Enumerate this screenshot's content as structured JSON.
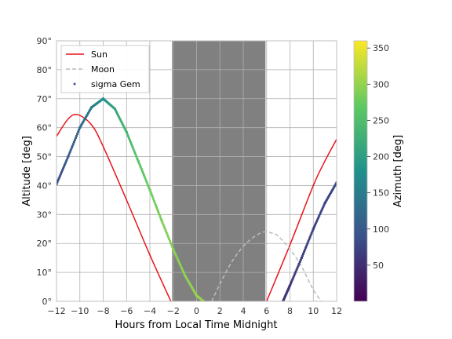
{
  "chart_data": {
    "type": "line",
    "xlabel": "Hours from Local Time Midnight",
    "ylabel": "Altitude [deg]",
    "xlim": [
      -12,
      12
    ],
    "ylim": [
      0,
      90
    ],
    "xticks": [
      -12,
      -10,
      -8,
      -6,
      -4,
      -2,
      0,
      2,
      4,
      6,
      8,
      10,
      12
    ],
    "xtick_labels": [
      "−12",
      "−10",
      "−8",
      "−6",
      "−4",
      "−2",
      "0",
      "2",
      "4",
      "6",
      "8",
      "10",
      "12"
    ],
    "yticks": [
      0,
      10,
      20,
      30,
      40,
      50,
      60,
      70,
      80,
      90
    ],
    "ytick_labels": [
      "0°",
      "10°",
      "20°",
      "30°",
      "40°",
      "50°",
      "60°",
      "70°",
      "80°",
      "90°"
    ],
    "grid": true,
    "legend_position": "top-left",
    "night_shading": {
      "x": [
        -2.1,
        5.9
      ],
      "color": "#808080"
    },
    "series": [
      {
        "name": "Sun",
        "kind": "line",
        "color": "#e8141c",
        "x": [
          -12,
          -11,
          -10.2,
          -9,
          -8,
          -6,
          -4,
          -2.2,
          6,
          8,
          10,
          11,
          12
        ],
        "y": [
          57,
          63,
          64.5,
          61,
          53.5,
          35,
          16,
          0,
          0,
          19.5,
          40,
          48.5,
          56
        ]
      },
      {
        "name": "Moon",
        "kind": "dashed",
        "color": "#bbbbbb",
        "x": [
          1.3,
          2,
          3,
          4,
          5,
          5.8,
          6.5,
          7,
          8,
          9,
          10,
          10.7
        ],
        "y": [
          0,
          6,
          13.5,
          19,
          22.5,
          24,
          23.5,
          22.5,
          18,
          12,
          4,
          0
        ]
      },
      {
        "name": "sigma Gem",
        "kind": "scatter",
        "x": [
          -12,
          -11,
          -10,
          -9,
          -8,
          -7,
          -6,
          -5,
          -4,
          -3,
          -2,
          -1,
          0,
          0.6,
          7.4,
          8,
          9,
          10,
          11,
          12
        ],
        "y": [
          40.5,
          50,
          60,
          67,
          70,
          66.5,
          58.5,
          48.5,
          38.5,
          28,
          18,
          9,
          2,
          0,
          0,
          5.5,
          15,
          25,
          34,
          41
        ],
        "azimuth": [
          80,
          98,
          122,
          150,
          180,
          215,
          240,
          262,
          275,
          287,
          293,
          297,
          301,
          303,
          55,
          60,
          67,
          73,
          77,
          80
        ]
      }
    ],
    "colorbar": {
      "label": "Azimuth [deg]",
      "colormap": "viridis",
      "range": [
        0,
        360
      ],
      "ticks": [
        50,
        100,
        150,
        200,
        250,
        300,
        350
      ],
      "tick_labels": [
        "50",
        "100",
        "150",
        "200",
        "250",
        "300",
        "350"
      ]
    }
  }
}
